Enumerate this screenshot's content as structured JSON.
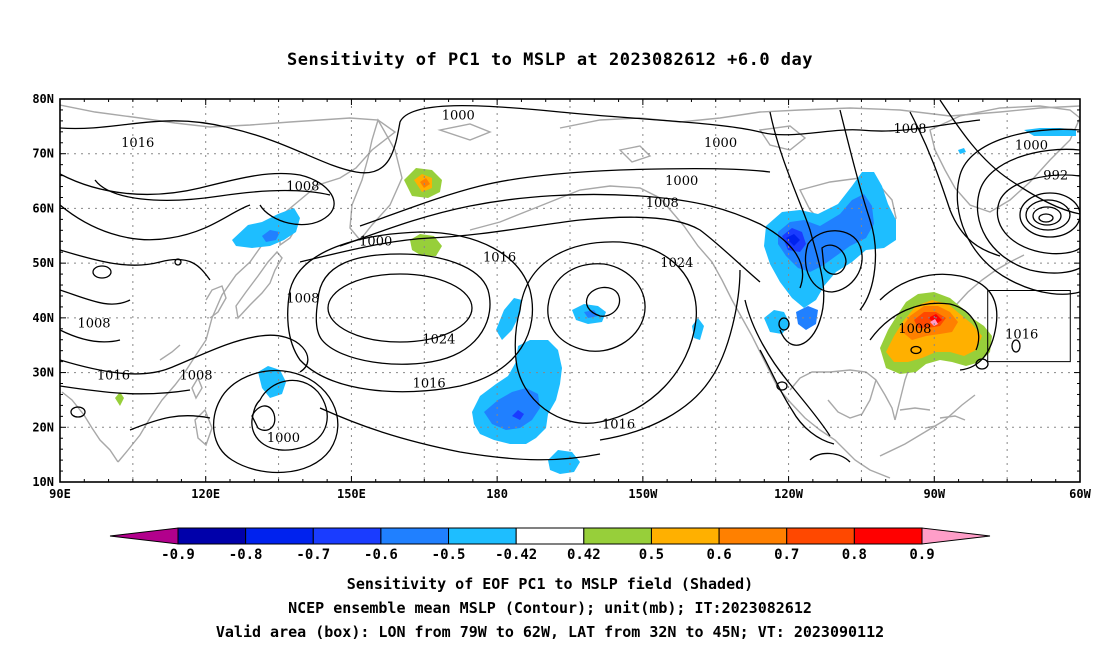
{
  "title": "Sensitivity of PC1 to MSLP at 2023082612 +6.0 day",
  "map": {
    "lat_range": [
      10,
      80
    ],
    "lon_range": [
      90,
      300
    ],
    "lat_ticks": [
      "80N",
      "70N",
      "60N",
      "50N",
      "40N",
      "30N",
      "20N",
      "10N"
    ],
    "lon_ticks": [
      "90E",
      "120E",
      "150E",
      "180",
      "150W",
      "120W",
      "90W",
      "60W"
    ],
    "contour_labels": [
      {
        "text": "1000",
        "lon": 172,
        "lat": 77
      },
      {
        "text": "1016",
        "lon": 106,
        "lat": 72
      },
      {
        "text": "1008",
        "lon": 140,
        "lat": 64
      },
      {
        "text": "1000",
        "lon": 155,
        "lat": 54
      },
      {
        "text": "1008",
        "lon": 140,
        "lat": 43.5
      },
      {
        "text": "1008",
        "lon": 97,
        "lat": 39
      },
      {
        "text": "1016",
        "lon": 101,
        "lat": 29.5
      },
      {
        "text": "1008",
        "lon": 118,
        "lat": 29.5
      },
      {
        "text": "1000",
        "lon": 136,
        "lat": 18
      },
      {
        "text": "1024",
        "lon": 168,
        "lat": 36
      },
      {
        "text": "1016",
        "lon": 180.5,
        "lat": 51
      },
      {
        "text": "1016",
        "lon": 166,
        "lat": 28
      },
      {
        "text": "1016",
        "lon": 205,
        "lat": 20.5
      },
      {
        "text": "1024",
        "lon": 217,
        "lat": 50
      },
      {
        "text": "1000",
        "lon": 226,
        "lat": 72
      },
      {
        "text": "1000",
        "lon": 218,
        "lat": 65
      },
      {
        "text": "1008",
        "lon": 214,
        "lat": 61
      },
      {
        "text": "1008",
        "lon": 265,
        "lat": 74.5
      },
      {
        "text": "1008",
        "lon": 266,
        "lat": 38
      },
      {
        "text": "1016",
        "lon": 288,
        "lat": 37
      },
      {
        "text": "1000",
        "lon": 290,
        "lat": 71.5
      },
      {
        "text": "992",
        "lon": 295,
        "lat": 66
      }
    ],
    "valid_box": {
      "lon_min": 281,
      "lon_max": 298,
      "lat_min": 32,
      "lat_max": 45
    }
  },
  "colorbar": {
    "labels": [
      "-0.9",
      "-0.8",
      "-0.7",
      "-0.6",
      "-0.5",
      "-0.42",
      "0.42",
      "0.5",
      "0.6",
      "0.7",
      "0.8",
      "0.9"
    ],
    "colors": [
      "#b2008c",
      "#0000aa",
      "#0022ee",
      "#1a3cff",
      "#2080ff",
      "#1ebeff",
      "#ffffff",
      "#97cf3a",
      "#ffb000",
      "#ff8000",
      "#ff4800",
      "#ff0000",
      "#ff9ec8"
    ]
  },
  "captions": {
    "line1": "Sensitivity of EOF PC1 to MSLP field (Shaded)",
    "line2": "NCEP ensemble mean MSLP (Contour); unit(mb); IT:2023082612",
    "line3": "Valid area (box): LON from 79W to 62W, LAT from 32N to 45N; VT: 2023090112"
  }
}
